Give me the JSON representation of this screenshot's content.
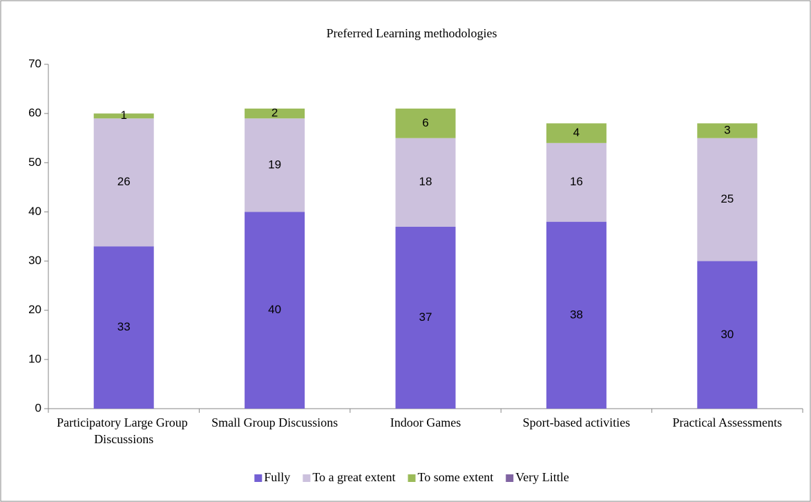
{
  "chart_data": {
    "type": "stacked_bar",
    "title": "Preferred Learning methodologies",
    "categories": [
      "Participatory Large Group Discussions",
      "Small Group Discussions",
      "Indoor Games",
      "Sport-based activities",
      "Practical Assessments"
    ],
    "series": [
      {
        "name": "Fully",
        "color": "#7460d4",
        "values": [
          33,
          40,
          37,
          38,
          30
        ]
      },
      {
        "name": "To a great extent",
        "color": "#ccc1dd",
        "values": [
          26,
          19,
          18,
          16,
          25
        ]
      },
      {
        "name": "To some extent",
        "color": "#9bbb59",
        "values": [
          1,
          2,
          6,
          4,
          3
        ]
      },
      {
        "name": "Very Little",
        "color": "#8064a2",
        "values": [
          null,
          null,
          null,
          null,
          null
        ]
      }
    ],
    "ylim": [
      0,
      70
    ],
    "yticks": [
      0,
      10,
      20,
      30,
      40,
      50,
      60,
      70
    ],
    "grid": false,
    "legend": "bottom"
  }
}
